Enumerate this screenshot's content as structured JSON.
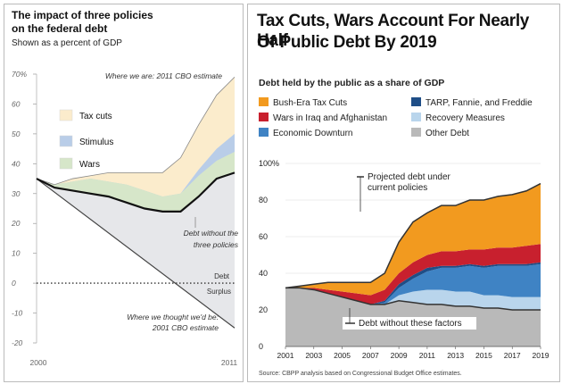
{
  "left": {
    "title_line1": "The impact of three policies",
    "title_line2": "on the federal debt",
    "subtitle": "Shown as a percent of GDP",
    "chart_data": {
      "type": "area",
      "x_start": 2000,
      "x_end": 2011,
      "x_tick_labels": [
        "2000",
        "2011"
      ],
      "ylim": [
        -20,
        70
      ],
      "yticks": [
        "70%",
        "60",
        "50",
        "40",
        "30",
        "20",
        "10",
        "0",
        "-10",
        "-20"
      ],
      "ytick_values": [
        70,
        60,
        50,
        40,
        30,
        20,
        10,
        0,
        -10,
        -20
      ],
      "x": [
        2000,
        2001,
        2002,
        2003,
        2004,
        2005,
        2006,
        2007,
        2008,
        2009,
        2010,
        2011
      ],
      "debt_without_policies": [
        35,
        32,
        31,
        30,
        29,
        27,
        25,
        24,
        24,
        29,
        35,
        37
      ],
      "series": [
        {
          "name": "Wars",
          "color": "#d6e6c9",
          "top": [
            35,
            33,
            34,
            35,
            34,
            33,
            31,
            29,
            30,
            36,
            41,
            44
          ]
        },
        {
          "name": "Stimulus",
          "color": "#b9cde8",
          "top": [
            35,
            33,
            34,
            35,
            34,
            33,
            31,
            29,
            30,
            38,
            45,
            50
          ]
        },
        {
          "name": "Tax cuts",
          "color": "#fbeccc",
          "top": [
            35,
            33,
            35,
            36,
            37,
            37,
            37,
            37,
            42,
            53,
            63,
            69
          ]
        }
      ],
      "cbo_2001_line": {
        "x": [
          2000,
          2011
        ],
        "y": [
          35,
          -15
        ]
      },
      "annotations": {
        "cbo_2011": "Where we are: 2011 CBO estimate",
        "without_line1": "Debt without the",
        "without_line2": "three policies",
        "debt": "Debt",
        "surplus": "Surplus",
        "cbo_2001_line1": "Where we thought we'd be:",
        "cbo_2001_line2": "2001 CBO estimate"
      }
    }
  },
  "right": {
    "title_line1": "Tax Cuts, Wars Account For Nearly Half",
    "title_line2": "Of Public Debt By 2019",
    "subtitle": "Debt held by the public as a share of GDP",
    "source": "Source: CBPP analysis based on Congressional Budget Office estimates.",
    "chart_data": {
      "type": "area",
      "x": [
        2001,
        2002,
        2003,
        2004,
        2005,
        2006,
        2007,
        2008,
        2009,
        2010,
        2011,
        2012,
        2013,
        2014,
        2015,
        2016,
        2017,
        2018,
        2019
      ],
      "x_tick_labels": [
        "2001",
        "2003",
        "2005",
        "2007",
        "2009",
        "2011",
        "2013",
        "2015",
        "2017",
        "2019"
      ],
      "x_tick_values": [
        2001,
        2003,
        2005,
        2007,
        2009,
        2011,
        2013,
        2015,
        2017,
        2019
      ],
      "ylim": [
        0,
        100
      ],
      "yticks": [
        "100%",
        "80",
        "60",
        "40",
        "20",
        "0"
      ],
      "ytick_values": [
        100,
        80,
        60,
        40,
        20,
        0
      ],
      "legend": [
        {
          "name": "Bush-Era Tax Cuts",
          "color": "#f29a1f"
        },
        {
          "name": "TARP, Fannie, and Freddie",
          "color": "#1f4e87"
        },
        {
          "name": "Wars in Iraq and Afghanistan",
          "color": "#c8202e"
        },
        {
          "name": "Recovery Measures",
          "color": "#b9d5ec"
        },
        {
          "name": "Economic Downturn",
          "color": "#3f83c4"
        },
        {
          "name": "Other Debt",
          "color": "#b9b9b9"
        }
      ],
      "stack_order": [
        "Other Debt",
        "Recovery Measures",
        "Economic Downturn",
        "TARP, Fannie, and Freddie",
        "Wars in Iraq and Afghanistan",
        "Bush-Era Tax Cuts"
      ],
      "series": [
        {
          "name": "Other Debt",
          "values": [
            32,
            32,
            31,
            29,
            27,
            25,
            23,
            23,
            25,
            24,
            23,
            23,
            22,
            22,
            21,
            21,
            20,
            20,
            20
          ]
        },
        {
          "name": "Recovery Measures",
          "values": [
            0,
            0,
            0,
            0,
            0,
            0,
            0,
            0,
            3,
            6,
            8,
            8,
            8,
            8,
            7,
            7,
            7,
            7,
            7
          ]
        },
        {
          "name": "Economic Downturn",
          "values": [
            0,
            0,
            0,
            0,
            0,
            0,
            0,
            1,
            4,
            7,
            10,
            12,
            13,
            14,
            15,
            16,
            17,
            17,
            18
          ]
        },
        {
          "name": "TARP, Fannie, and Freddie",
          "values": [
            0,
            0,
            0,
            0,
            0,
            0,
            0,
            1,
            2,
            2,
            2,
            1,
            1,
            1,
            1,
            1,
            1,
            1,
            1
          ]
        },
        {
          "name": "Wars in Iraq and Afghanistan",
          "values": [
            0,
            0,
            1,
            2,
            3,
            4,
            5,
            6,
            6,
            7,
            7,
            8,
            8,
            8,
            9,
            9,
            9,
            10,
            10
          ]
        },
        {
          "name": "Bush-Era Tax Cuts",
          "values": [
            0,
            1,
            2,
            4,
            5,
            6,
            7,
            9,
            17,
            22,
            23,
            25,
            25,
            27,
            27,
            28,
            29,
            30,
            33
          ]
        }
      ],
      "annotations": {
        "projected_line1": "Projected debt under",
        "projected_line2": "current policies",
        "without": "Debt without these factors"
      }
    }
  }
}
